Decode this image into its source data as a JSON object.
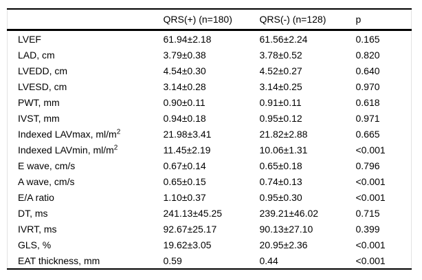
{
  "table": {
    "columns": [
      "",
      "QRS(+) (n=180)",
      "QRS(-) (n=128)",
      "p"
    ],
    "rows": [
      {
        "label": "LVEF",
        "label_sup": "",
        "qrs_pos": "61.94±2.18",
        "qrs_neg": "61.56±2.24",
        "p": "0.165"
      },
      {
        "label": "LAD, cm",
        "label_sup": "",
        "qrs_pos": "3.79±0.38",
        "qrs_neg": "3.78±0.52",
        "p": "0.820"
      },
      {
        "label": "LVEDD, cm",
        "label_sup": "",
        "qrs_pos": "4.54±0.30",
        "qrs_neg": "4.52±0.27",
        "p": "0.640"
      },
      {
        "label": "LVESD, cm",
        "label_sup": "",
        "qrs_pos": "3.14±0.28",
        "qrs_neg": "3.14±0.25",
        "p": "0.970"
      },
      {
        "label": "PWT, mm",
        "label_sup": "",
        "qrs_pos": "0.90±0.11",
        "qrs_neg": "0.91±0.11",
        "p": "0.618"
      },
      {
        "label": "IVST, mm",
        "label_sup": "",
        "qrs_pos": "0.94±0.18",
        "qrs_neg": "0.95±0.12",
        "p": "0.971"
      },
      {
        "label": "Indexed LAVmax, ml/m",
        "label_sup": "2",
        "qrs_pos": "21.98±3.41",
        "qrs_neg": "21.82±2.88",
        "p": "0.665"
      },
      {
        "label": "Indexed LAVmin, ml/m",
        "label_sup": "2",
        "qrs_pos": "11.45±2.19",
        "qrs_neg": "10.06±1.31",
        "p": "<0.001"
      },
      {
        "label": "E wave, cm/s",
        "label_sup": "",
        "qrs_pos": "0.67±0.14",
        "qrs_neg": "0.65±0.18",
        "p": "0.796"
      },
      {
        "label": "A wave, cm/s",
        "label_sup": "",
        "qrs_pos": "0.65±0.15",
        "qrs_neg": "0.74±0.13",
        "p": "<0.001"
      },
      {
        "label": "E/A ratio",
        "label_sup": "",
        "qrs_pos": "1.10±0.37",
        "qrs_neg": "0.95±0.30",
        "p": "<0.001"
      },
      {
        "label": "DT, ms",
        "label_sup": "",
        "qrs_pos": "241.13±45.25",
        "qrs_neg": "239.21±46.02",
        "p": "0.715"
      },
      {
        "label": "IVRT, ms",
        "label_sup": "",
        "qrs_pos": "92.67±25.17",
        "qrs_neg": "90.13±27.10",
        "p": "0.399"
      },
      {
        "label": "GLS, %",
        "label_sup": "",
        "qrs_pos": "19.62±3.05",
        "qrs_neg": "20.95±2.36",
        "p": "<0.001"
      },
      {
        "label": "EAT thickness, mm",
        "label_sup": "",
        "qrs_pos": "0.59",
        "qrs_neg": "0.44",
        "p": "<0.001"
      }
    ]
  }
}
